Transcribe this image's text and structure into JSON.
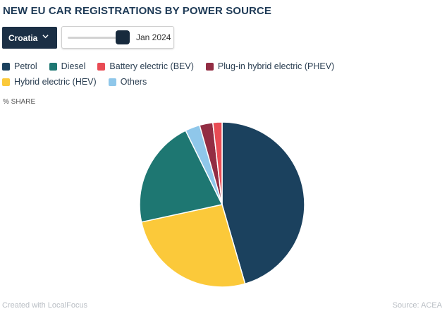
{
  "header": {
    "title": "NEW EU CAR REGISTRATIONS BY POWER SOURCE"
  },
  "controls": {
    "country": "Croatia",
    "date": "Jan 2024",
    "slider_value": 1.0
  },
  "icons": {
    "dropdown": "chevron-down-icon"
  },
  "chart_data": {
    "type": "pie",
    "title": "NEW EU CAR REGISTRATIONS BY POWER SOURCE",
    "value_label": "% SHARE",
    "legend_position": "top-left",
    "categories": [
      "Petrol",
      "Diesel",
      "Battery electric (BEV)",
      "Plug-in hybrid electric (PHEV)",
      "Hybrid electric (HEV)",
      "Others"
    ],
    "values": [
      45.5,
      21.1,
      1.8,
      2.6,
      26.1,
      2.9
    ],
    "colors": [
      "#1b415e",
      "#1e7772",
      "#e94b54",
      "#922d43",
      "#fbc93a",
      "#8fc7ea"
    ],
    "draw_order": [
      0,
      4,
      1,
      5,
      3,
      2
    ]
  },
  "footer": {
    "credit": "Created with LocalFocus",
    "source": "Source: ACEA"
  }
}
